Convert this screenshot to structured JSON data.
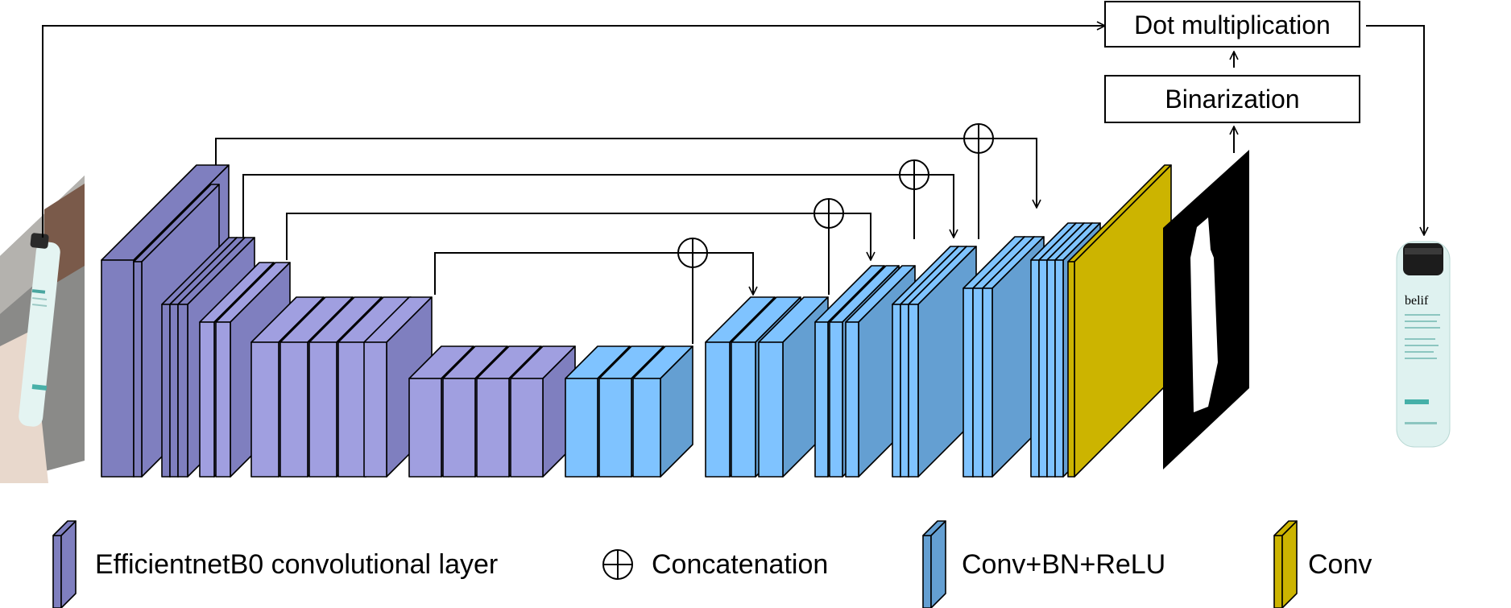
{
  "boxes": {
    "dot_multiplication": "Dot multiplication",
    "binarization": "Binarization"
  },
  "product_label": "belif",
  "legend": {
    "efficientnet": "EfficientnetB0 convolutional layer",
    "concatenation": "Concatenation",
    "conv_bn_relu": "Conv+BN+ReLU",
    "conv": "Conv"
  },
  "colors": {
    "efficientnet_dark": "#7f7fbf",
    "efficientnet_light": "#a09fe0",
    "conv_bn_relu_light": "#7fc3ff",
    "conv_bn_relu_dark": "#649fd2",
    "conv": "#ccb400",
    "mask_bg": "#000000",
    "line": "#000000"
  },
  "icons": {
    "input": "photo-of-bottle-icon",
    "mask": "binary-mask-icon",
    "output": "segmented-bottle-icon",
    "concat": "circled-plus-icon"
  }
}
